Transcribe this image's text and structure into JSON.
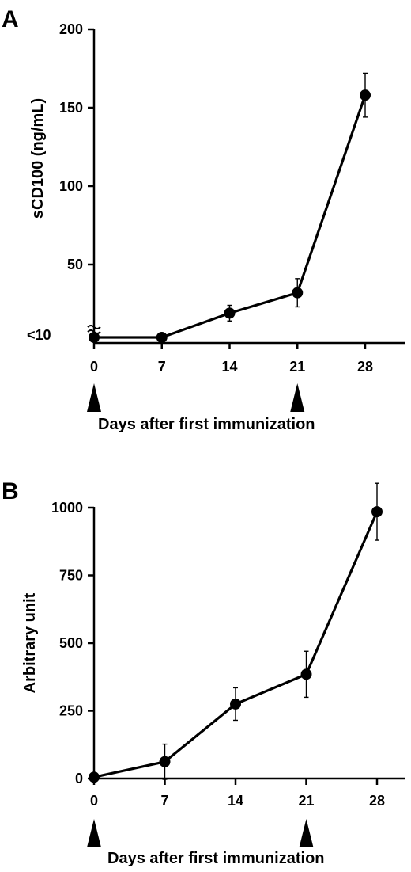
{
  "chart_data": [
    {
      "type": "line",
      "panel_label": "A",
      "x": [
        0,
        7,
        14,
        21,
        28
      ],
      "xticks": [
        "0",
        "7",
        "14",
        "21",
        "28"
      ],
      "xlabel": "Days after first immunization",
      "ylabel": "sCD100 (ng/mL)",
      "yticks": [
        50,
        100,
        150,
        200
      ],
      "ylim": [
        0,
        200
      ],
      "below_break_label": "<10",
      "series": [
        {
          "values": [
            null,
            null,
            19,
            32,
            158
          ],
          "error": [
            null,
            null,
            5,
            9,
            14
          ]
        }
      ],
      "below_detection_points": [
        0,
        7
      ],
      "immunization_days": [
        0,
        21
      ]
    },
    {
      "type": "line",
      "panel_label": "B",
      "x": [
        0,
        7,
        14,
        21,
        28
      ],
      "xticks": [
        "0",
        "7",
        "14",
        "21",
        "28"
      ],
      "xlabel": "Days after first immunization",
      "ylabel": "Arbitrary unit",
      "yticks": [
        0,
        250,
        500,
        750,
        1000
      ],
      "ylim": [
        0,
        1000
      ],
      "series": [
        {
          "values": [
            5,
            62,
            275,
            385,
            985
          ],
          "error": [
            0,
            65,
            60,
            85,
            105
          ]
        }
      ],
      "immunization_days": [
        0,
        21
      ]
    }
  ]
}
